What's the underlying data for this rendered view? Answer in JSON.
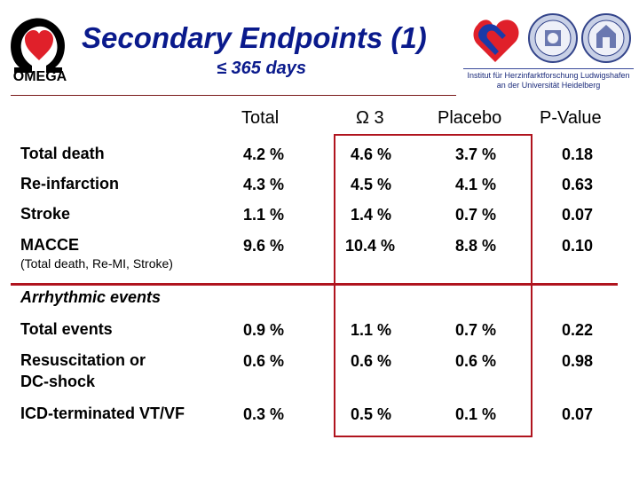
{
  "header": {
    "logo_text": "OMEGA",
    "title": "Secondary Endpoints (1)",
    "subtitle": "≤ 365 days",
    "institute_line1": "Institut für Herzinfarktforschung Ludwigshafen",
    "institute_line2": "an der Universität Heidelberg"
  },
  "colors": {
    "title": "#0a1a8c",
    "accent_red": "#b0141e",
    "heart": "#e0202a"
  },
  "table": {
    "columns": [
      "Total",
      "Ω 3",
      "Placebo",
      "P-Value"
    ],
    "rows_main": [
      {
        "label": "Total death",
        "total": "4.2 %",
        "omega3": "4.6 %",
        "placebo": "3.7 %",
        "p": "0.18"
      },
      {
        "label": "Re-infarction",
        "total": "4.3 %",
        "omega3": "4.5 %",
        "placebo": "4.1 %",
        "p": "0.63"
      },
      {
        "label": "Stroke",
        "total": "1.1 %",
        "omega3": "1.4 %",
        "placebo": "0.7 %",
        "p": "0.07"
      },
      {
        "label": "MACCE",
        "sublabel": "(Total death, Re-MI, Stroke)",
        "total": "9.6 %",
        "omega3": "10.4 %",
        "placebo": "8.8 %",
        "p": "0.10"
      }
    ],
    "section_title": "Arrhythmic events",
    "rows_arr": [
      {
        "label": "Total events",
        "total": "0.9 %",
        "omega3": "1.1 %",
        "placebo": "0.7 %",
        "p": "0.22"
      },
      {
        "label": "Resuscitation or",
        "label2": "DC-shock",
        "total": "0.6 %",
        "omega3": "0.6 %",
        "placebo": "0.6 %",
        "p": "0.98"
      },
      {
        "label": "ICD-terminated VT/VF",
        "total": "0.3 %",
        "omega3": "0.5 %",
        "placebo": "0.1 %",
        "p": "0.07"
      }
    ]
  }
}
